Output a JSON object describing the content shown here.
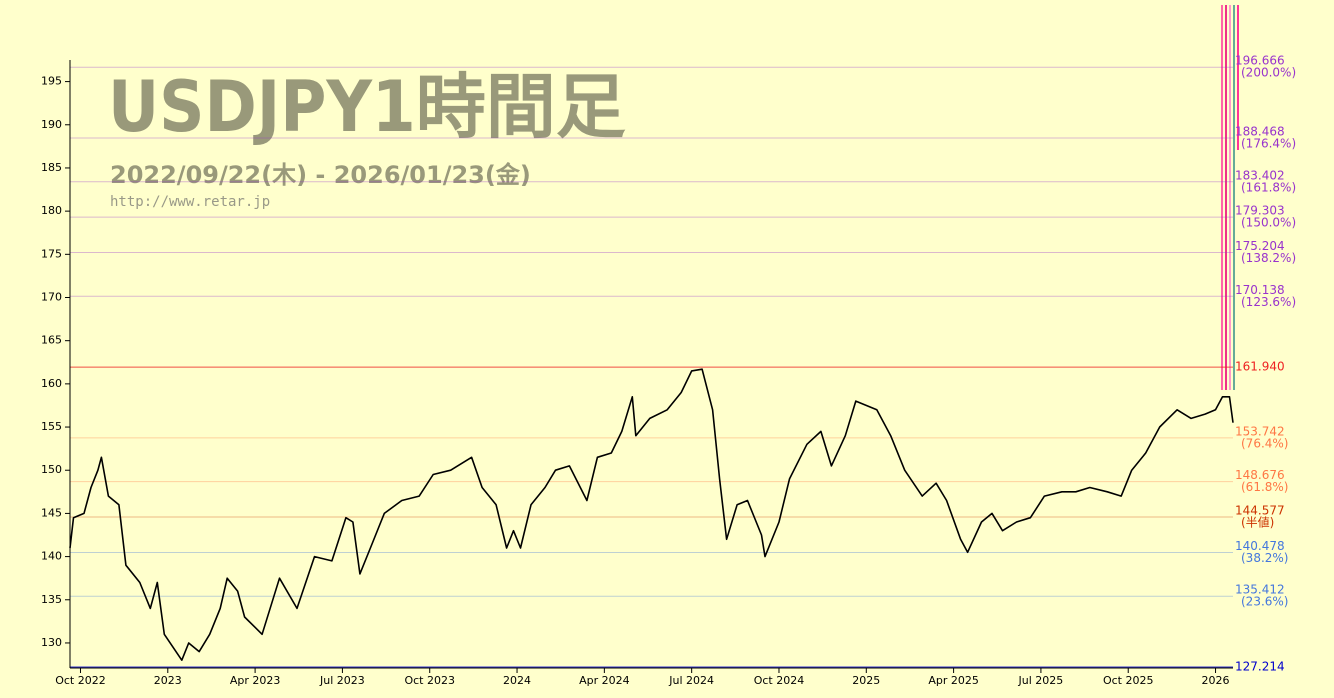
{
  "chart_data": {
    "type": "line",
    "title": "USDJPY1時間足",
    "subtitle": "2022/09/22(木) - 2026/01/23(金)",
    "source": "http://www.retar.jp",
    "color": "#000000",
    "x": [
      2022.72,
      2022.73,
      2022.76,
      2022.78,
      2022.8,
      2022.81,
      2022.83,
      2022.86,
      2022.88,
      2022.92,
      2022.95,
      2022.97,
      2022.99,
      2023.04,
      2023.06,
      2023.09,
      2023.12,
      2023.15,
      2023.17,
      2023.2,
      2023.22,
      2023.27,
      2023.32,
      2023.37,
      2023.42,
      2023.47,
      2023.51,
      2023.53,
      2023.55,
      2023.58,
      2023.62,
      2023.67,
      2023.72,
      2023.76,
      2023.81,
      2023.87,
      2023.9,
      2023.94,
      2023.97,
      2023.99,
      2024.01,
      2024.04,
      2024.08,
      2024.11,
      2024.15,
      2024.2,
      2024.23,
      2024.27,
      2024.3,
      2024.33,
      2024.34,
      2024.38,
      2024.43,
      2024.47,
      2024.5,
      2024.53,
      2024.56,
      2024.58,
      2024.6,
      2024.63,
      2024.66,
      2024.7,
      2024.71,
      2024.75,
      2024.78,
      2024.83,
      2024.87,
      2024.9,
      2024.94,
      2024.97,
      2025.03,
      2025.07,
      2025.11,
      2025.16,
      2025.2,
      2025.23,
      2025.27,
      2025.29,
      2025.33,
      2025.36,
      2025.39,
      2025.43,
      2025.47,
      2025.51,
      2025.56,
      2025.6,
      2025.64,
      2025.69,
      2025.73,
      2025.76,
      2025.8,
      2025.84,
      2025.89,
      2025.93,
      2025.97,
      2026.0,
      2026.02,
      2026.04,
      2026.05
    ],
    "values": [
      141,
      144.5,
      145,
      148,
      150,
      151.5,
      147,
      146,
      139,
      137,
      134,
      137,
      131,
      128,
      130,
      129,
      131,
      134,
      137.5,
      136,
      133,
      131,
      137.5,
      134,
      140,
      139.5,
      144.5,
      144,
      138,
      141,
      145,
      146.5,
      147,
      149.5,
      150,
      151.5,
      148,
      146,
      141,
      143,
      141,
      146,
      148,
      150,
      150.5,
      146.5,
      151.5,
      152,
      154.5,
      158.5,
      154,
      156,
      157,
      159,
      161.5,
      161.7,
      157,
      149,
      142,
      146,
      146.5,
      142.5,
      140,
      144,
      149,
      153,
      154.5,
      150.5,
      154,
      158,
      157,
      154,
      150,
      147,
      148.5,
      146.5,
      142,
      140.5,
      144,
      145,
      143,
      144,
      144.5,
      147,
      147.5,
      147.5,
      148,
      147.5,
      147,
      150,
      152,
      155,
      157,
      156,
      156.5,
      157,
      158.5,
      158.5,
      155.5
    ],
    "xlim": [
      2022.72,
      2026.05
    ],
    "xticks": [
      {
        "value": 2022.75,
        "label": "Oct 2022"
      },
      {
        "value": 2023,
        "label": "2023"
      },
      {
        "value": 2023.25,
        "label": "Apr 2023"
      },
      {
        "value": 2023.5,
        "label": "Jul 2023"
      },
      {
        "value": 2023.75,
        "label": "Oct 2023"
      },
      {
        "value": 2024,
        "label": "2024"
      },
      {
        "value": 2024.25,
        "label": "Apr 2024"
      },
      {
        "value": 2024.5,
        "label": "Jul 2024"
      },
      {
        "value": 2024.75,
        "label": "Oct 2024"
      },
      {
        "value": 2025,
        "label": "2025"
      },
      {
        "value": 2025.25,
        "label": "Apr 2025"
      },
      {
        "value": 2025.5,
        "label": "Jul 2025"
      },
      {
        "value": 2025.75,
        "label": "Oct 2025"
      },
      {
        "value": 2026,
        "label": "2026"
      }
    ],
    "ylim": [
      127.1,
      197.5
    ],
    "yticks": [
      130,
      135,
      140,
      145,
      150,
      155,
      160,
      165,
      170,
      175,
      180,
      185,
      190,
      195
    ],
    "levels": [
      {
        "value": 196.666,
        "label": "196.666",
        "note": "(200.0%)",
        "color": "#9933cc"
      },
      {
        "value": 188.468,
        "label": "188.468",
        "note": "(176.4%)",
        "color": "#9933cc"
      },
      {
        "value": 183.402,
        "label": "183.402",
        "note": "(161.8%)",
        "color": "#9933cc"
      },
      {
        "value": 179.303,
        "label": "179.303",
        "note": "(150.0%)",
        "color": "#9933cc"
      },
      {
        "value": 175.204,
        "label": "175.204",
        "note": "(138.2%)",
        "color": "#9933cc"
      },
      {
        "value": 170.138,
        "label": "170.138",
        "note": "(123.6%)",
        "color": "#9933cc"
      },
      {
        "value": 161.94,
        "label": "161.940",
        "color": "#ee2222"
      },
      {
        "value": 153.742,
        "label": "153.742",
        "note": "(76.4%)",
        "color": "#ff7744"
      },
      {
        "value": 148.676,
        "label": "148.676",
        "note": "(61.8%)",
        "color": "#ff7744"
      },
      {
        "value": 144.577,
        "label": "144.577",
        "note": "(半値)",
        "color": "#cc3300"
      },
      {
        "value": 140.478,
        "label": "140.478",
        "note": "(38.2%)",
        "color": "#4477dd"
      },
      {
        "value": 135.412,
        "label": "135.412",
        "note": "(23.6%)",
        "color": "#4477dd"
      },
      {
        "value": 127.214,
        "label": "127.214",
        "color": "#0000cc"
      }
    ]
  }
}
